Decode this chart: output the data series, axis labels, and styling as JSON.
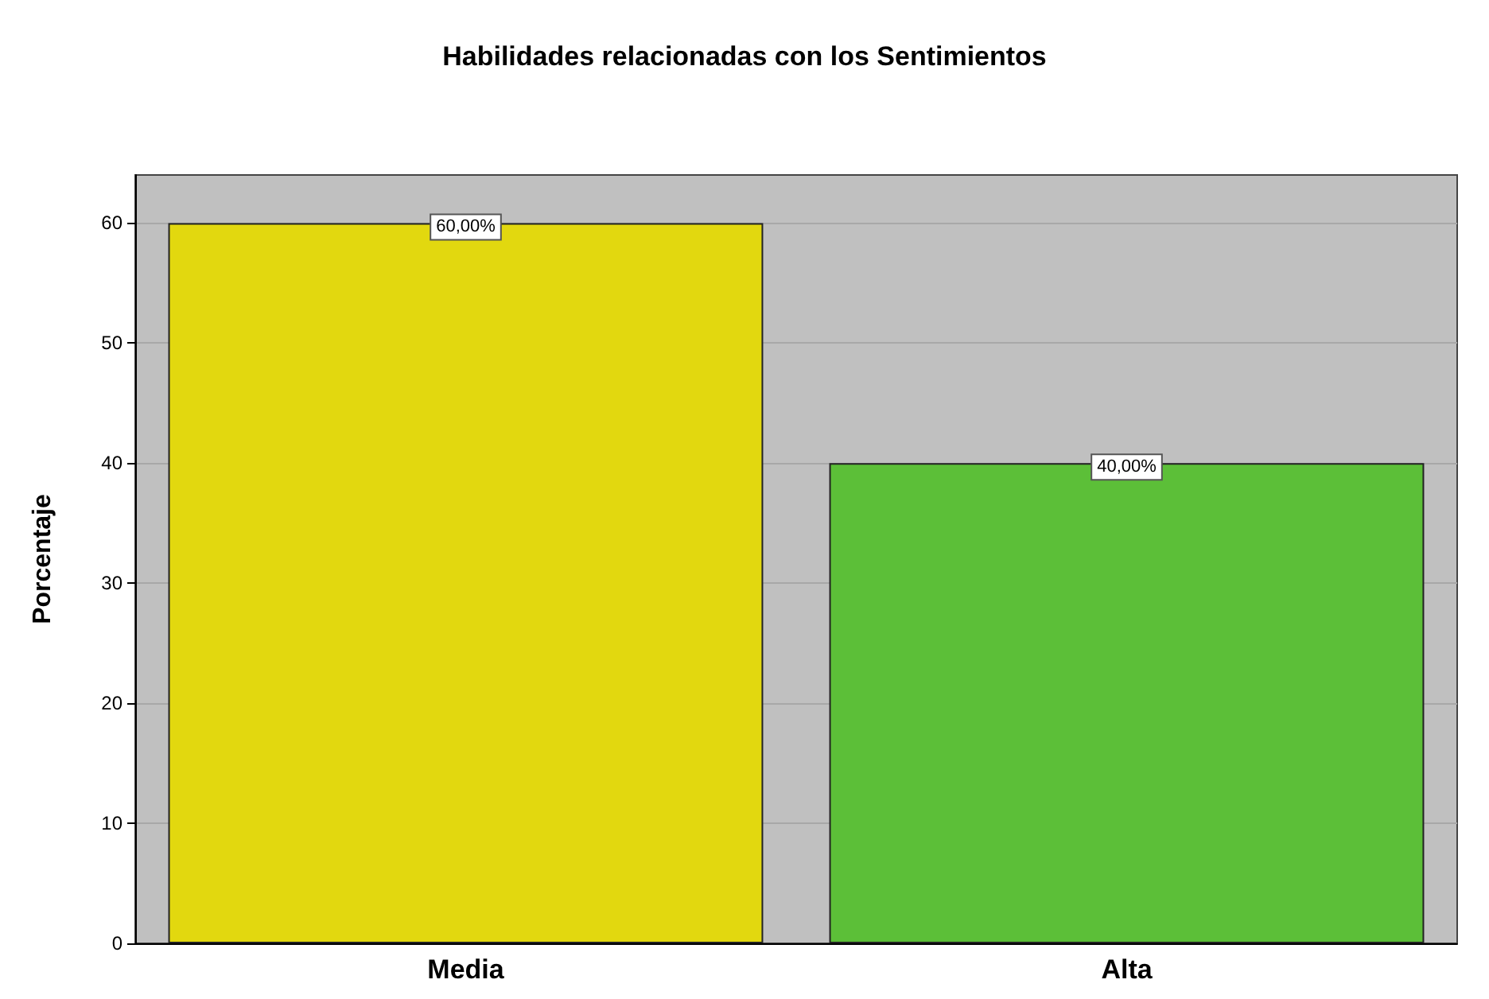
{
  "chart_data": {
    "type": "bar",
    "title": "Habilidades relacionadas con los Sentimientos",
    "ylabel": "Porcentaje",
    "categories": [
      "Media",
      "Alta"
    ],
    "values": [
      60,
      40
    ],
    "colors": [
      "#e2d80f",
      "#5cbf38"
    ],
    "value_labels": [
      "60,00%",
      "40,00%"
    ],
    "ylim": [
      0,
      64
    ],
    "yticks": [
      0,
      10,
      20,
      30,
      40,
      50,
      60
    ],
    "grid": "y"
  }
}
